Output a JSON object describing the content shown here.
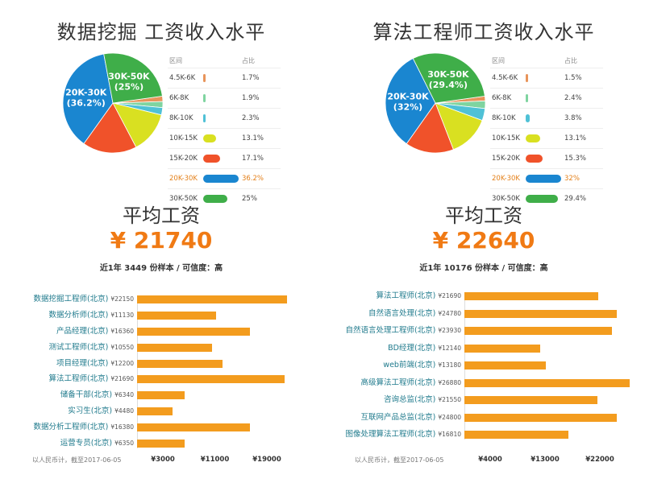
{
  "colors": {
    "accent": "#f07a14",
    "bar": "#f39c1e",
    "label_teal": "#1f7a8c"
  },
  "chart_data": [
    {
      "type": "pie",
      "title": "数据挖掘 工资收入水平",
      "table_headers": [
        "区间",
        "占比"
      ],
      "slices": [
        {
          "label": "4.5K-6K",
          "pct_text": "1.7%",
          "value": 1.7,
          "color": "#e8945a"
        },
        {
          "label": "6K-8K",
          "pct_text": "1.9%",
          "value": 1.9,
          "color": "#7fd4a0"
        },
        {
          "label": "8K-10K",
          "pct_text": "2.3%",
          "value": 2.3,
          "color": "#4fc1d6"
        },
        {
          "label": "10K-15K",
          "pct_text": "13.1%",
          "value": 13.1,
          "color": "#d9e021"
        },
        {
          "label": "15K-20K",
          "pct_text": "17.1%",
          "value": 17.1,
          "color": "#f0522a"
        },
        {
          "label": "20K-30K",
          "pct_text": "36.2%",
          "value": 36.2,
          "color": "#1a86d0",
          "highlight": true
        },
        {
          "label": "30K-50K",
          "pct_text": "25%",
          "value": 25,
          "color": "#3fae49"
        }
      ],
      "pie_labels": [
        {
          "slice": "20K-30K",
          "line1": "20K-30K",
          "line2": "(36.2%)"
        },
        {
          "slice": "30K-50K",
          "line1": "30K-50K",
          "line2": "(25%)"
        }
      ]
    },
    {
      "type": "pie",
      "title": "算法工程师工资收入水平",
      "table_headers": [
        "区间",
        "占比"
      ],
      "slices": [
        {
          "label": "4.5K-6K",
          "pct_text": "1.5%",
          "value": 1.5,
          "color": "#e8945a"
        },
        {
          "label": "6K-8K",
          "pct_text": "2.4%",
          "value": 2.4,
          "color": "#7fd4a0"
        },
        {
          "label": "8K-10K",
          "pct_text": "3.8%",
          "value": 3.8,
          "color": "#4fc1d6"
        },
        {
          "label": "10K-15K",
          "pct_text": "13.1%",
          "value": 13.1,
          "color": "#d9e021"
        },
        {
          "label": "15K-20K",
          "pct_text": "15.3%",
          "value": 15.3,
          "color": "#f0522a"
        },
        {
          "label": "20K-30K",
          "pct_text": "32%",
          "value": 32,
          "color": "#1a86d0",
          "highlight": true
        },
        {
          "label": "30K-50K",
          "pct_text": "29.4%",
          "value": 29.4,
          "color": "#3fae49"
        }
      ],
      "pie_labels": [
        {
          "slice": "20K-30K",
          "line1": "20K-30K",
          "line2": "(32%)"
        },
        {
          "slice": "30K-50K",
          "line1": "30K-50K",
          "line2": "(29.4%)"
        }
      ]
    },
    {
      "type": "bar",
      "orientation": "horizontal",
      "title": "平均工资",
      "big_value": "¥ 21740",
      "sample_text": "近1年 3449 份样本 / 可信度：高",
      "categories": [
        "数据挖掘工程师(北京)",
        "数据分析师(北京)",
        "产品经理(北京)",
        "测试工程师(北京)",
        "项目经理(北京)",
        "算法工程师(北京)",
        "储备干部(北京)",
        "实习生(北京)",
        "数据分析工程师(北京)",
        "运营专员(北京)"
      ],
      "value_labels": [
        "¥22150",
        "¥11130",
        "¥16360",
        "¥10550",
        "¥12200",
        "¥21690",
        "¥6340",
        "¥4480",
        "¥16380",
        "¥6350"
      ],
      "values": [
        22150,
        11130,
        16360,
        10550,
        12200,
        21690,
        6340,
        4480,
        16380,
        6350
      ],
      "x_ticks": [
        3000,
        11000,
        19000
      ],
      "x_tick_labels": [
        "¥3000",
        "¥11000",
        "¥19000"
      ],
      "footnote": "以人民币计，截至2017-06-05"
    },
    {
      "type": "bar",
      "orientation": "horizontal",
      "title": "平均工资",
      "big_value": "¥ 22640",
      "sample_text": "近1年 10176 份样本 / 可信度：高",
      "categories": [
        "算法工程师(北京)",
        "自然语言处理(北京)",
        "自然语言处理工程师(北京)",
        "BD经理(北京)",
        "web前端(北京)",
        "高级算法工程师(北京)",
        "咨询总监(北京)",
        "互联网产品总监(北京)",
        "图像处理算法工程师(北京)"
      ],
      "value_labels": [
        "¥21690",
        "¥24780",
        "¥23930",
        "¥12140",
        "¥13180",
        "¥26880",
        "¥21550",
        "¥24800",
        "¥16810"
      ],
      "values": [
        21690,
        24780,
        23930,
        12140,
        13180,
        26880,
        21550,
        24800,
        16810
      ],
      "x_ticks": [
        4000,
        13000,
        22000
      ],
      "x_tick_labels": [
        "¥4000",
        "¥13000",
        "¥22000"
      ],
      "footnote": "以人民币计，截至2017-06-05"
    }
  ]
}
